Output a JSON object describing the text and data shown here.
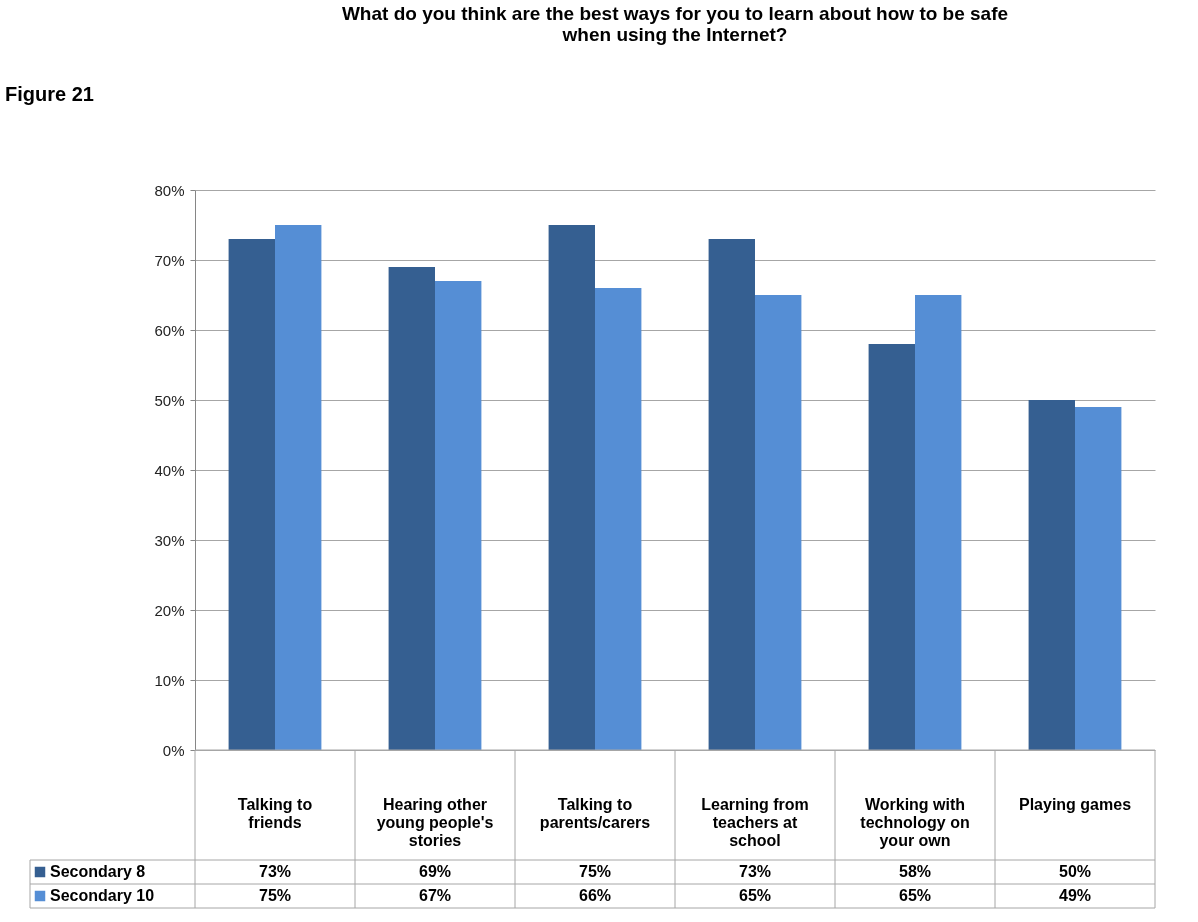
{
  "chart_data": {
    "type": "bar",
    "title": "What do you think are the best ways for you to learn about how to be safe when using the Internet?",
    "categories": [
      "Talking to friends",
      "Hearing other young people's stories",
      "Talking to parents/carers",
      "Learning from teachers at school",
      "Working with technology on your own",
      "Playing games"
    ],
    "series": [
      {
        "name": "Secondary 8",
        "color": "#355f91",
        "values": [
          73,
          69,
          75,
          73,
          58,
          50
        ],
        "value_labels": [
          "73%",
          "69%",
          "75%",
          "73%",
          "58%",
          "50%"
        ]
      },
      {
        "name": "Secondary 10",
        "color": "#558ed5",
        "values": [
          75,
          67,
          66,
          65,
          65,
          49
        ],
        "value_labels": [
          "75%",
          "67%",
          "66%",
          "65%",
          "65%",
          "49%"
        ]
      }
    ],
    "ylim": [
      0,
      80
    ],
    "yticks": [
      {
        "value": 0,
        "label": "0%"
      },
      {
        "value": 10,
        "label": "10%"
      },
      {
        "value": 20,
        "label": "20%"
      },
      {
        "value": 30,
        "label": "30%"
      },
      {
        "value": 40,
        "label": "40%"
      },
      {
        "value": 50,
        "label": "50%"
      },
      {
        "value": 60,
        "label": "60%"
      },
      {
        "value": 70,
        "label": "70%"
      },
      {
        "value": 80,
        "label": "80%"
      }
    ],
    "grid": "y",
    "legend": "bottom left",
    "annotations": [
      "Figure 21"
    ]
  }
}
